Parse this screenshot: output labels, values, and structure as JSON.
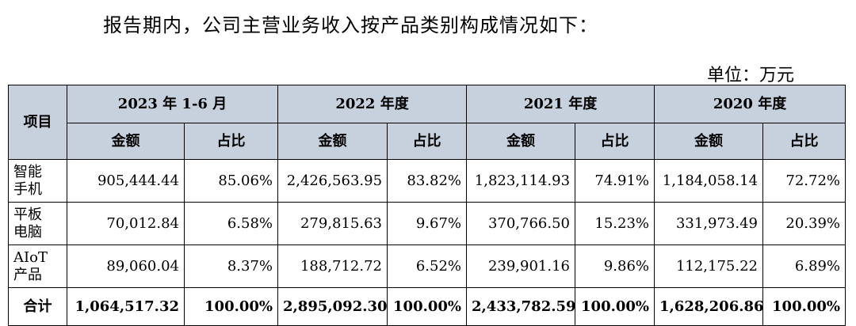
{
  "intro": "报告期内，公司主营业务收入按产品类别构成情况如下：",
  "unit": "单位：万元",
  "table": {
    "item_header": "项目",
    "periods": [
      "2023 年 1-6 月",
      "2022 年度",
      "2021 年度",
      "2020 年度"
    ],
    "amount_label": "金额",
    "ratio_label": "占比",
    "rows": [
      {
        "line1": "智能",
        "line2": "手机",
        "values": [
          "905,444.44",
          "85.06%",
          "2,426,563.95",
          "83.82%",
          "1,823,114.93",
          "74.91%",
          "1,184,058.14",
          "72.72%"
        ]
      },
      {
        "line1": "平板",
        "line2": "电脑",
        "values": [
          "70,012.84",
          "6.58%",
          "279,815.63",
          "9.67%",
          "370,766.50",
          "15.23%",
          "331,973.49",
          "20.39%"
        ]
      },
      {
        "line1": "AIoT",
        "line2": "产品",
        "values": [
          "89,060.04",
          "8.37%",
          "188,712.72",
          "6.52%",
          "239,901.16",
          "9.86%",
          "112,175.22",
          "6.89%"
        ]
      }
    ],
    "total": {
      "label": "合计",
      "values": [
        "1,064,517.32",
        "100.00%",
        "2,895,092.30",
        "100.00%",
        "2,433,782.59",
        "100.00%",
        "1,628,206.86",
        "100.00%"
      ]
    }
  }
}
